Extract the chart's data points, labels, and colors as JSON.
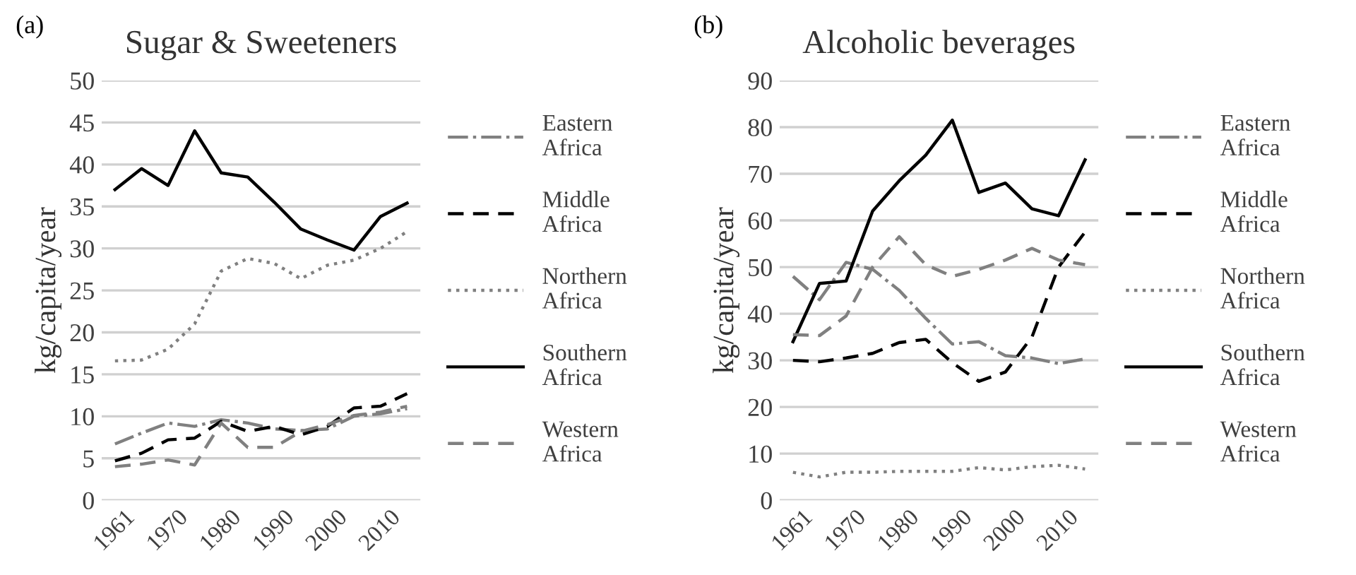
{
  "chart_data": [
    {
      "type": "line",
      "title": "Sugar & Sweeteners",
      "ylabel": "kg/capita/year",
      "annotations": [
        "(a)"
      ],
      "categories": [
        "1961",
        null,
        "1970",
        null,
        "1980",
        null,
        "1990",
        null,
        "2000",
        null,
        "2010",
        null
      ],
      "ylim": [
        0,
        50
      ],
      "yticks": [
        0,
        5,
        10,
        15,
        20,
        25,
        30,
        35,
        40,
        45,
        50
      ],
      "grid": "y",
      "legend": "right",
      "marker": "none",
      "series": [
        {
          "name": "Eastern Africa",
          "color": "#808080",
          "line_style": "dashdot",
          "values": [
            6.7,
            8,
            9.2,
            8.8,
            9.6,
            9.2,
            8.5,
            8.3,
            8.5,
            10,
            10.3,
            10.9
          ]
        },
        {
          "name": "Middle Africa",
          "color": "#000000",
          "line_style": "dashed",
          "values": [
            4.7,
            5.6,
            7.2,
            7.4,
            9.4,
            8.2,
            8.8,
            7.8,
            8.8,
            11,
            11.2,
            12.7
          ]
        },
        {
          "name": "Northern Africa",
          "color": "#808080",
          "line_style": "dotted",
          "values": [
            16.6,
            16.7,
            18,
            21,
            27.3,
            28.8,
            28.2,
            26.4,
            28,
            28.6,
            30,
            32
          ]
        },
        {
          "name": "Southern Africa",
          "color": "#000000",
          "line_style": "solid",
          "values": [
            37,
            39.5,
            37.5,
            44,
            39,
            38.5,
            35.5,
            32.3,
            31,
            29.8,
            33.8,
            35.4
          ]
        },
        {
          "name": "Western Africa",
          "color": "#808080",
          "line_style": "dashed",
          "values": [
            4,
            4.3,
            4.8,
            4.2,
            9.2,
            6.3,
            6.3,
            8.2,
            9,
            10.1,
            10.5,
            11.2
          ]
        }
      ]
    },
    {
      "type": "line",
      "title": "Alcoholic beverages",
      "ylabel": "kg/capita/year",
      "annotations": [
        "(b)"
      ],
      "categories": [
        "1961",
        null,
        "1970",
        null,
        "1980",
        null,
        "1990",
        null,
        "2000",
        null,
        "2010",
        null
      ],
      "ylim": [
        0,
        90
      ],
      "yticks": [
        0,
        10,
        20,
        30,
        40,
        50,
        60,
        70,
        80,
        90
      ],
      "grid": "y",
      "legend": "right",
      "marker": "none",
      "series": [
        {
          "name": "Eastern Africa",
          "color": "#808080",
          "line_style": "dashdot",
          "values": [
            48,
            43,
            51,
            49.5,
            45,
            39,
            33.5,
            34,
            31,
            30.5,
            29.3,
            30.3
          ]
        },
        {
          "name": "Middle Africa",
          "color": "#000000",
          "line_style": "dashed",
          "values": [
            30,
            29.7,
            30.5,
            31.5,
            33.8,
            34.5,
            29.5,
            25.5,
            27.5,
            35,
            50,
            57.5
          ]
        },
        {
          "name": "Northern Africa",
          "color": "#808080",
          "line_style": "dotted",
          "values": [
            6,
            5,
            6,
            6,
            6.2,
            6.2,
            6.2,
            7,
            6.5,
            7.2,
            7.5,
            6.7
          ]
        },
        {
          "name": "Southern Africa",
          "color": "#000000",
          "line_style": "solid",
          "values": [
            34,
            46.5,
            47,
            62,
            68.5,
            74,
            81.5,
            66,
            68,
            62.5,
            61,
            73
          ]
        },
        {
          "name": "Western Africa",
          "color": "#808080",
          "line_style": "dashed",
          "values": [
            35.5,
            35.3,
            39.5,
            50,
            56.5,
            50.5,
            48,
            49.5,
            51.5,
            54,
            51.5,
            50.5
          ]
        }
      ]
    }
  ]
}
